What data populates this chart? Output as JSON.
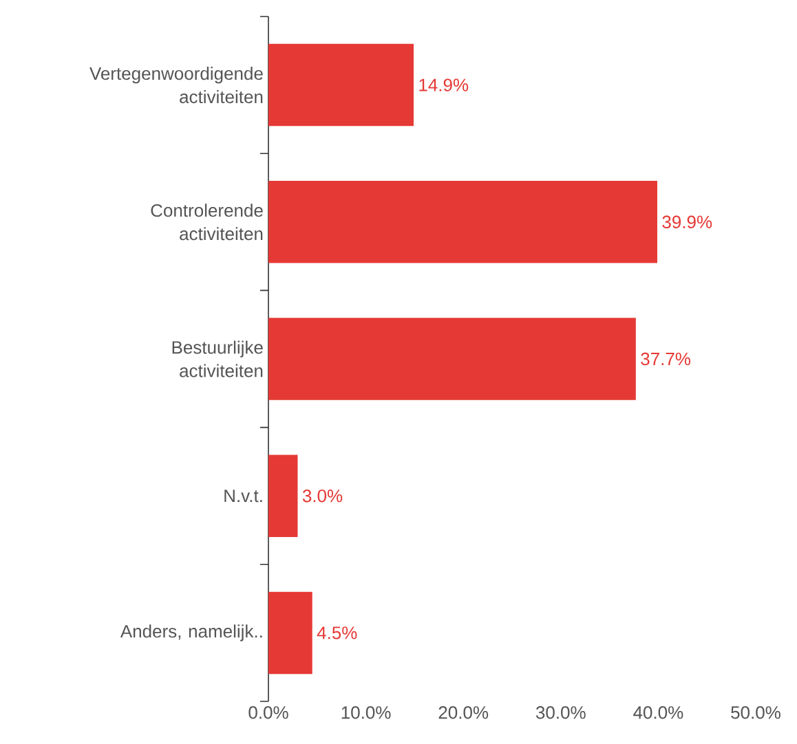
{
  "chart_data": {
    "type": "bar",
    "orientation": "horizontal",
    "categories": [
      "Vertegenwoordigende activiteiten",
      "Controlerende activiteiten",
      "Bestuurlijke activiteiten",
      "N.v.t.",
      "Anders, namelijk.."
    ],
    "values": [
      14.9,
      39.9,
      37.7,
      3.0,
      4.5
    ],
    "value_labels": [
      "14.9%",
      "39.9%",
      "37.7%",
      "3.0%",
      "4.5%"
    ],
    "color": "#e53935",
    "xlim": [
      0,
      50
    ],
    "xticks": [
      {
        "value": 0,
        "label": "0.0%"
      },
      {
        "value": 10,
        "label": "10.0%"
      },
      {
        "value": 20,
        "label": "20.0%"
      },
      {
        "value": 30,
        "label": "30.0%"
      },
      {
        "value": 40,
        "label": "40.0%"
      },
      {
        "value": 50,
        "label": "50.0%"
      }
    ],
    "grid": false
  }
}
